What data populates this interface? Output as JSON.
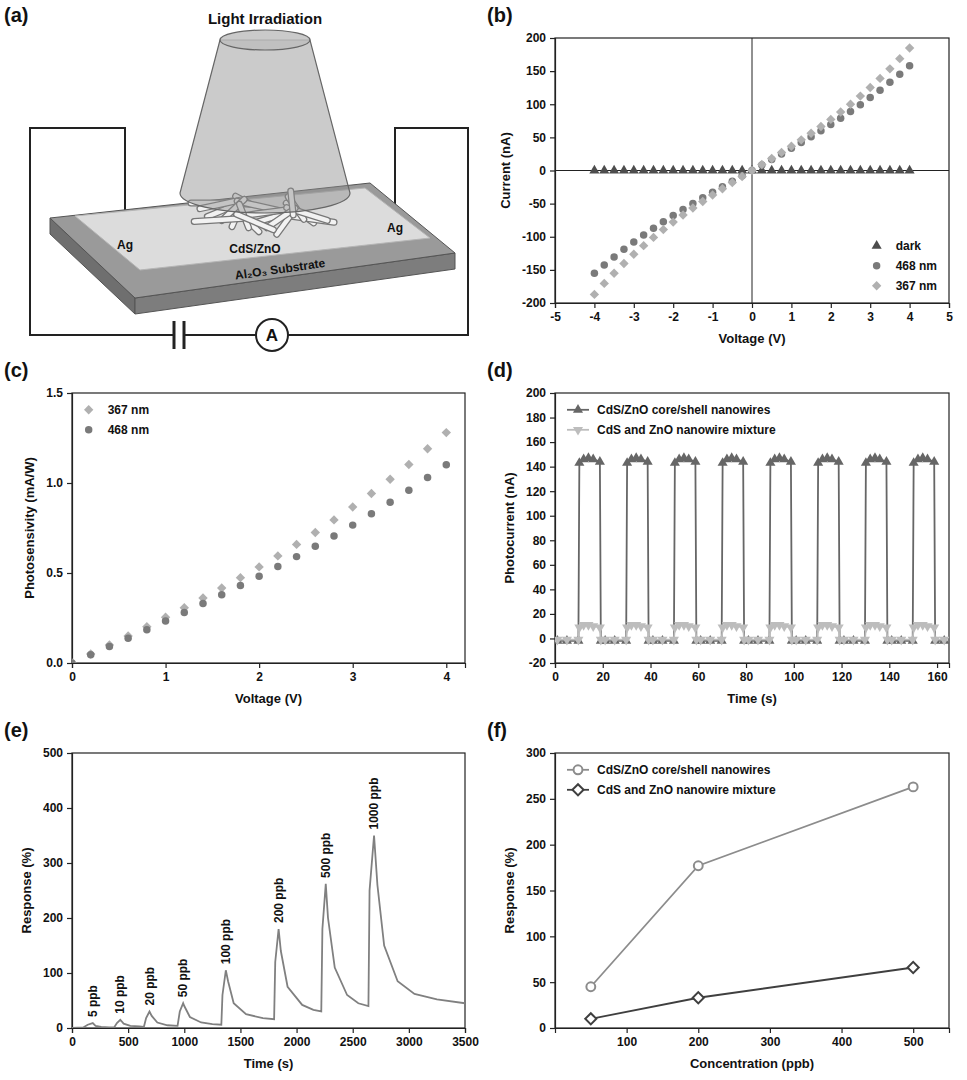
{
  "diagram": {
    "title": "(a)",
    "light_label": "Light Irradiation",
    "electrode_labels": [
      "Ag",
      "Ag"
    ],
    "sample_label": "CdS/ZnO",
    "substrate_label": "Al₂O₃ Substrate",
    "meter_label": "A"
  },
  "chart_data": [
    {
      "type": "scatter",
      "title": "(b)",
      "x_label": "Voltage (V)",
      "y_label": "Current (nA)",
      "x": [
        -4,
        -3.75,
        -3.5,
        -3.25,
        -3,
        -2.75,
        -2.5,
        -2.25,
        -2,
        -1.75,
        -1.5,
        -1.25,
        -1,
        -0.75,
        -0.5,
        -0.25,
        0,
        0.25,
        0.5,
        0.75,
        1,
        1.25,
        1.5,
        1.75,
        2,
        2.25,
        2.5,
        2.75,
        3,
        3.25,
        3.5,
        3.75,
        4
      ],
      "xlim": [
        -5,
        5
      ],
      "xticks": [
        -5,
        -4,
        -3,
        -2,
        -1,
        0,
        1,
        2,
        3,
        4,
        5
      ],
      "ylim": [
        -200,
        200
      ],
      "yticks": [
        -200,
        -150,
        -100,
        -50,
        0,
        50,
        100,
        150,
        200
      ],
      "grid": false,
      "legend": "lower right",
      "series": [
        {
          "name": "dark",
          "color": "#4d4d4d",
          "marker": "triangle",
          "values": [
            0,
            0,
            0,
            0,
            0,
            0,
            0,
            0,
            0,
            0,
            0,
            0,
            0,
            0,
            0,
            0,
            0,
            0,
            0,
            0,
            0,
            0,
            0,
            0,
            0,
            0,
            0,
            0,
            0,
            0,
            0,
            0,
            0
          ]
        },
        {
          "name": "468 nm",
          "color": "#7a7a7a",
          "marker": "circle",
          "values": [
            -155,
            -142.5,
            -130.4,
            -118.9,
            -107.9,
            -97.3,
            -87.1,
            -77.3,
            -67.9,
            -58.7,
            -49.9,
            -41.2,
            -32.7,
            -24.4,
            -16.2,
            -8.1,
            0,
            8.3,
            16.6,
            24.9,
            33.4,
            42.1,
            50.9,
            59.9,
            69.3,
            78.9,
            88.9,
            99.3,
            110.1,
            121.3,
            133.1,
            145.4,
            158
          ]
        },
        {
          "name": "367 nm",
          "color": "#b0b0b0",
          "marker": "diamond",
          "values": [
            -187,
            -170.4,
            -155,
            -140.4,
            -126.5,
            -113.4,
            -101,
            -89.2,
            -77.9,
            -67.1,
            -56.7,
            -46.7,
            -37,
            -27.5,
            -18.3,
            -9.1,
            0,
            9,
            18.1,
            27.3,
            36.6,
            46.3,
            56.2,
            66.4,
            77.1,
            88.3,
            100,
            112.3,
            125.3,
            139,
            153.4,
            168.8,
            185
          ]
        }
      ]
    },
    {
      "type": "scatter",
      "title": "(c)",
      "x_label": "Voltage (V)",
      "y_label": "Photosensivity (mA/W)",
      "x": [
        0,
        0.2,
        0.4,
        0.6,
        0.8,
        1,
        1.2,
        1.4,
        1.6,
        1.8,
        2,
        2.2,
        2.4,
        2.6,
        2.8,
        3,
        3.2,
        3.4,
        3.6,
        3.8,
        4
      ],
      "xlim": [
        0,
        4.2
      ],
      "xticks": [
        0,
        1,
        2,
        3,
        4
      ],
      "ylim": [
        0,
        1.5
      ],
      "yticks": [
        {
          "value": 0,
          "label": "0.0"
        },
        0.5,
        {
          "value": 1,
          "label": "1.0"
        },
        1.5
      ],
      "grid": false,
      "legend": "upper left",
      "series": [
        {
          "name": "367 nm",
          "color": "#b0b0b0",
          "marker": "diamond",
          "values": [
            0,
            0.05,
            0.1,
            0.15,
            0.202,
            0.254,
            0.307,
            0.361,
            0.417,
            0.474,
            0.534,
            0.595,
            0.659,
            0.725,
            0.795,
            0.867,
            0.942,
            1.021,
            1.103,
            1.19,
            1.28
          ]
        },
        {
          "name": "468 nm",
          "color": "#7a7a7a",
          "marker": "circle",
          "values": [
            0,
            0.046,
            0.092,
            0.138,
            0.185,
            0.233,
            0.281,
            0.33,
            0.379,
            0.43,
            0.482,
            0.536,
            0.591,
            0.648,
            0.706,
            0.766,
            0.829,
            0.893,
            0.96,
            1.03,
            1.102
          ]
        }
      ]
    },
    {
      "type": "line",
      "title": "(d)",
      "x_label": "Time (s)",
      "y_label": "Photocurrent (nA)",
      "x": [
        1,
        5,
        9.8,
        10.2,
        12,
        14,
        16,
        18.8,
        19.2,
        21,
        25,
        29.8,
        30.2,
        32,
        34,
        36,
        38.8,
        39.2,
        41,
        45,
        49.8,
        50.2,
        52,
        54,
        56,
        58.8,
        59.2,
        61,
        65,
        69.8,
        70.2,
        72,
        74,
        76,
        78.8,
        79.2,
        81,
        85,
        89.8,
        90.2,
        92,
        94,
        96,
        98.8,
        99.2,
        101,
        105,
        109.8,
        110.2,
        112,
        114,
        116,
        118.8,
        119.2,
        121,
        125,
        129.8,
        130.2,
        132,
        134,
        136,
        138.8,
        139.2,
        141,
        145,
        149.8,
        150.2,
        152,
        154,
        156,
        158.8,
        159.2,
        163
      ],
      "xlim": [
        0,
        165
      ],
      "xticks": [
        0,
        20,
        40,
        60,
        80,
        100,
        120,
        140,
        160
      ],
      "ylim": [
        -20,
        200
      ],
      "yticks": [
        -20,
        0,
        20,
        40,
        60,
        80,
        100,
        120,
        140,
        160,
        180,
        200
      ],
      "grid": false,
      "legend": "upper left",
      "series": [
        {
          "name": "CdS/ZnO core/shell nanowires",
          "color": "#666666",
          "marker": "triangle",
          "line_style": "solid",
          "values": [
            -2,
            -2,
            -2,
            143,
            146,
            147,
            146,
            144,
            -2,
            -2,
            -2,
            -2,
            143,
            146,
            147,
            146,
            144,
            -2,
            -2,
            -2,
            -2,
            143,
            146,
            147,
            146,
            144,
            -2,
            -2,
            -2,
            -2,
            143,
            146,
            147,
            146,
            144,
            -2,
            -2,
            -2,
            -2,
            143,
            146,
            147,
            146,
            144,
            -2,
            -2,
            -2,
            -2,
            143,
            146,
            147,
            146,
            144,
            -2,
            -2,
            -2,
            -2,
            143,
            146,
            147,
            146,
            144,
            -2,
            -2,
            -2,
            -2,
            143,
            146,
            147,
            146,
            144,
            -2,
            -2
          ]
        },
        {
          "name": "CdS and ZnO nanowire mixture",
          "color": "#bdbdbd",
          "marker": "triangle-down",
          "line_style": "solid",
          "values": [
            -1,
            -1,
            -1,
            9,
            11,
            11,
            10,
            9,
            -1,
            -1,
            -1,
            -1,
            9,
            11,
            11,
            10,
            9,
            -1,
            -1,
            -1,
            -1,
            9,
            11,
            11,
            10,
            9,
            -1,
            -1,
            -1,
            -1,
            9,
            11,
            11,
            10,
            9,
            -1,
            -1,
            -1,
            -1,
            9,
            11,
            11,
            10,
            9,
            -1,
            -1,
            -1,
            -1,
            9,
            11,
            11,
            10,
            9,
            -1,
            -1,
            -1,
            -1,
            9,
            11,
            11,
            10,
            9,
            -1,
            -1,
            -1,
            -1,
            9,
            11,
            11,
            10,
            9,
            -1,
            -1
          ]
        }
      ]
    },
    {
      "type": "line",
      "title": "(e)",
      "x_label": "Time (s)",
      "y_label": "Response (%)",
      "x": [
        0,
        100,
        140,
        185,
        210,
        260,
        330,
        375,
        400,
        430,
        460,
        520,
        600,
        640,
        660,
        690,
        710,
        760,
        850,
        940,
        960,
        990,
        1000,
        1050,
        1150,
        1250,
        1330,
        1340,
        1370,
        1390,
        1440,
        1550,
        1700,
        1800,
        1810,
        1840,
        1860,
        1920,
        2050,
        2150,
        2220,
        2230,
        2260,
        2280,
        2340,
        2450,
        2550,
        2640,
        2650,
        2690,
        2720,
        2780,
        2900,
        3050,
        3250,
        3500
      ],
      "xlim": [
        0,
        3500
      ],
      "xticks": [
        0,
        500,
        1000,
        1500,
        2000,
        2500,
        3000,
        3500
      ],
      "ylim": [
        0,
        500
      ],
      "yticks": [
        0,
        100,
        200,
        300,
        400,
        500
      ],
      "grid": false,
      "series": [
        {
          "color": "#808080",
          "line_style": "solid",
          "values": [
            0,
            1,
            6,
            9,
            4,
            2,
            1,
            1,
            9,
            15,
            8,
            4,
            3,
            2,
            18,
            30,
            22,
            10,
            5,
            4,
            30,
            45,
            40,
            20,
            10,
            7,
            6,
            60,
            105,
            85,
            45,
            25,
            18,
            16,
            120,
            180,
            140,
            75,
            42,
            33,
            30,
            180,
            262,
            200,
            110,
            60,
            45,
            40,
            250,
            350,
            260,
            150,
            85,
            62,
            52,
            45
          ]
        }
      ],
      "annotations": [
        {
          "text": "5 ppb",
          "x": 185,
          "y": 9
        },
        {
          "text": "10 ppb",
          "x": 430,
          "y": 15
        },
        {
          "text": "20 ppb",
          "x": 690,
          "y": 30
        },
        {
          "text": "50 ppb",
          "x": 990,
          "y": 45
        },
        {
          "text": "100 ppb",
          "x": 1370,
          "y": 105
        },
        {
          "text": "200 ppb",
          "x": 1840,
          "y": 180
        },
        {
          "text": "500 ppb",
          "x": 2260,
          "y": 262
        },
        {
          "text": "1000 ppb",
          "x": 2690,
          "y": 350
        }
      ]
    },
    {
      "type": "line",
      "title": "(f)",
      "x_label": "Concentration (ppb)",
      "y_label": "Response (%)",
      "x": [
        50,
        200,
        500
      ],
      "xlim": [
        0,
        550
      ],
      "xticks": [
        100,
        200,
        300,
        400,
        500
      ],
      "ylim": [
        0,
        300
      ],
      "yticks": [
        0,
        50,
        100,
        150,
        200,
        250,
        300
      ],
      "grid": false,
      "legend": "upper left",
      "series": [
        {
          "name": "CdS/ZnO core/shell nanowires",
          "color": "#8c8c8c",
          "marker": "open-circle",
          "line_style": "solid",
          "values": [
            45,
            177,
            263
          ]
        },
        {
          "name": "CdS and ZnO nanowire mixture",
          "color": "#3f3f3f",
          "marker": "open-diamond",
          "line_style": "solid",
          "values": [
            10,
            33,
            66
          ]
        }
      ]
    }
  ]
}
